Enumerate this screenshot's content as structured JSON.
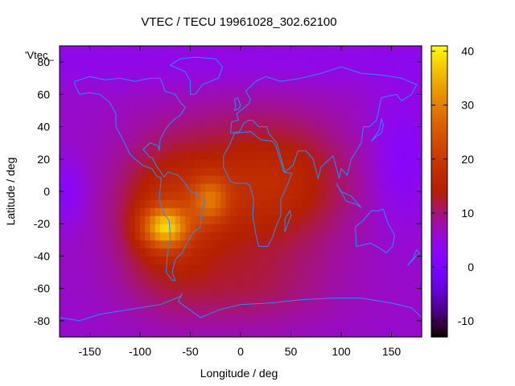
{
  "chart_data": {
    "type": "heatmap",
    "title": "VTEC / TECU 19961028_302.62100",
    "xlabel": "Longitude / deg",
    "ylabel": "Latitude / deg",
    "xlim": [
      -180,
      180
    ],
    "ylim": [
      -90,
      90
    ],
    "x_ticks": [
      "-150",
      "-100",
      "-50",
      "0",
      "50",
      "100",
      "150"
    ],
    "x_tick_values": [
      -150,
      -100,
      -50,
      0,
      50,
      100,
      150
    ],
    "y_ticks": [
      "-80",
      "-60",
      "-40",
      "-20",
      "0",
      "20",
      "40",
      "60",
      "80"
    ],
    "y_tick_values": [
      -80,
      -60,
      -40,
      -20,
      0,
      20,
      40,
      60,
      80
    ],
    "colorbar": {
      "min": -13,
      "max": 41,
      "ticks": [
        "-10",
        "0",
        "10",
        "20",
        "30",
        "40"
      ],
      "tick_values": [
        -10,
        0,
        10,
        20,
        30,
        40
      ],
      "palette": "gnuplot-pm3d"
    },
    "legend_key": "'Vtec_",
    "grid": false,
    "coastline_color": "#1e90ff",
    "field_peaks": [
      {
        "lon": -75,
        "lat": -22,
        "value": 41
      },
      {
        "lon": -30,
        "lat": -5,
        "value": 26
      },
      {
        "lon": 60,
        "lat": 10,
        "value": 18
      }
    ]
  }
}
